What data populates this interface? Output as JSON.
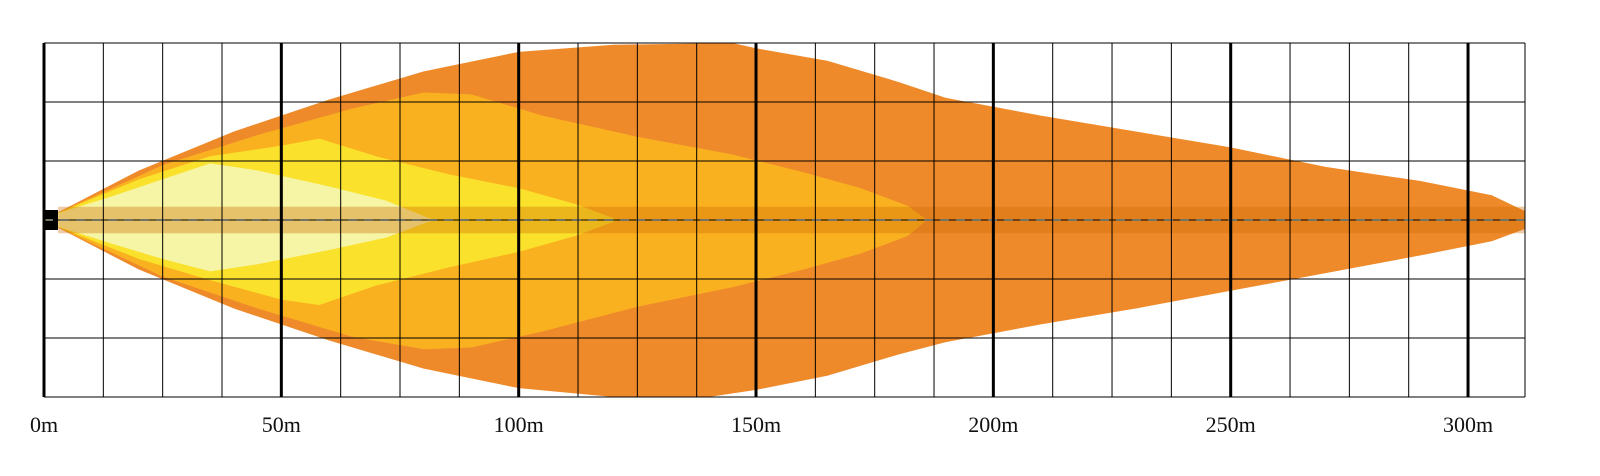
{
  "chart_data": {
    "type": "area",
    "title": "",
    "xlabel": "",
    "ylabel": "",
    "x_unit": "m",
    "xlim": [
      0,
      312
    ],
    "ylim": [
      -1,
      1
    ],
    "x_ticks": [
      {
        "value": 0,
        "label": "0m"
      },
      {
        "value": 50,
        "label": "50m"
      },
      {
        "value": 100,
        "label": "100m"
      },
      {
        "value": 150,
        "label": "150m"
      },
      {
        "value": 200,
        "label": "200m"
      },
      {
        "value": 250,
        "label": "250m"
      },
      {
        "value": 300,
        "label": "300m"
      }
    ],
    "grid": true,
    "grid_minor_step_x": 12.5,
    "grid_minor_step_y": 0.333,
    "grid_major_step_x": 50,
    "legend": "none",
    "series": [
      {
        "color": "#EF8A2B",
        "reach": 312,
        "upper": [
          [
            2,
            0.03
          ],
          [
            20,
            0.28
          ],
          [
            40,
            0.5
          ],
          [
            60,
            0.68
          ],
          [
            80,
            0.84
          ],
          [
            100,
            0.95
          ],
          [
            120,
            0.99
          ],
          [
            145,
            1.0
          ],
          [
            150,
            0.97
          ],
          [
            165,
            0.9
          ],
          [
            180,
            0.78
          ],
          [
            190,
            0.69
          ],
          [
            210,
            0.59
          ],
          [
            230,
            0.5
          ],
          [
            250,
            0.41
          ],
          [
            270,
            0.3
          ],
          [
            290,
            0.22
          ],
          [
            305,
            0.14
          ],
          [
            312,
            0.05
          ]
        ],
        "lower": [
          [
            2,
            -0.03
          ],
          [
            20,
            -0.28
          ],
          [
            40,
            -0.5
          ],
          [
            60,
            -0.68
          ],
          [
            80,
            -0.84
          ],
          [
            100,
            -0.95
          ],
          [
            120,
            -1.0
          ],
          [
            140,
            -1.0
          ],
          [
            150,
            -0.96
          ],
          [
            165,
            -0.88
          ],
          [
            180,
            -0.76
          ],
          [
            190,
            -0.69
          ],
          [
            210,
            -0.59
          ],
          [
            230,
            -0.5
          ],
          [
            250,
            -0.4
          ],
          [
            270,
            -0.3
          ],
          [
            290,
            -0.2
          ],
          [
            305,
            -0.12
          ],
          [
            312,
            -0.05
          ]
        ]
      },
      {
        "color": "#F9B120",
        "reach": 186,
        "upper": [
          [
            2,
            0.03
          ],
          [
            25,
            0.31
          ],
          [
            45,
            0.48
          ],
          [
            65,
            0.63
          ],
          [
            80,
            0.72
          ],
          [
            90,
            0.71
          ],
          [
            105,
            0.59
          ],
          [
            125,
            0.47
          ],
          [
            145,
            0.37
          ],
          [
            160,
            0.27
          ],
          [
            172,
            0.18
          ],
          [
            182,
            0.08
          ],
          [
            186,
            0.0
          ]
        ],
        "lower": [
          [
            2,
            -0.03
          ],
          [
            25,
            -0.32
          ],
          [
            45,
            -0.5
          ],
          [
            65,
            -0.66
          ],
          [
            80,
            -0.73
          ],
          [
            90,
            -0.72
          ],
          [
            105,
            -0.63
          ],
          [
            125,
            -0.49
          ],
          [
            145,
            -0.38
          ],
          [
            160,
            -0.28
          ],
          [
            172,
            -0.19
          ],
          [
            182,
            -0.09
          ],
          [
            186,
            0.0
          ]
        ]
      },
      {
        "color": "#FAE12B",
        "reach": 121,
        "upper": [
          [
            2,
            0.03
          ],
          [
            20,
            0.23
          ],
          [
            35,
            0.36
          ],
          [
            50,
            0.42
          ],
          [
            58,
            0.46
          ],
          [
            70,
            0.36
          ],
          [
            85,
            0.26
          ],
          [
            100,
            0.18
          ],
          [
            112,
            0.09
          ],
          [
            121,
            0.0
          ]
        ],
        "lower": [
          [
            2,
            -0.03
          ],
          [
            20,
            -0.22
          ],
          [
            35,
            -0.34
          ],
          [
            50,
            -0.45
          ],
          [
            58,
            -0.48
          ],
          [
            70,
            -0.37
          ],
          [
            85,
            -0.27
          ],
          [
            100,
            -0.18
          ],
          [
            112,
            -0.09
          ],
          [
            121,
            0.0
          ]
        ]
      },
      {
        "color": "#F5F5A5",
        "reach": 82,
        "upper": [
          [
            2,
            0.03
          ],
          [
            15,
            0.14
          ],
          [
            25,
            0.23
          ],
          [
            35,
            0.32
          ],
          [
            45,
            0.28
          ],
          [
            60,
            0.19
          ],
          [
            72,
            0.11
          ],
          [
            82,
            0.0
          ]
        ],
        "lower": [
          [
            2,
            -0.03
          ],
          [
            15,
            -0.14
          ],
          [
            25,
            -0.22
          ],
          [
            35,
            -0.29
          ],
          [
            45,
            -0.25
          ],
          [
            60,
            -0.17
          ],
          [
            72,
            -0.1
          ],
          [
            82,
            0.0
          ]
        ]
      }
    ],
    "centerline": {
      "half_width": 0.075,
      "color": "#CC6600",
      "opacity": 0.35,
      "dash_color": "#E8E8C8"
    }
  }
}
